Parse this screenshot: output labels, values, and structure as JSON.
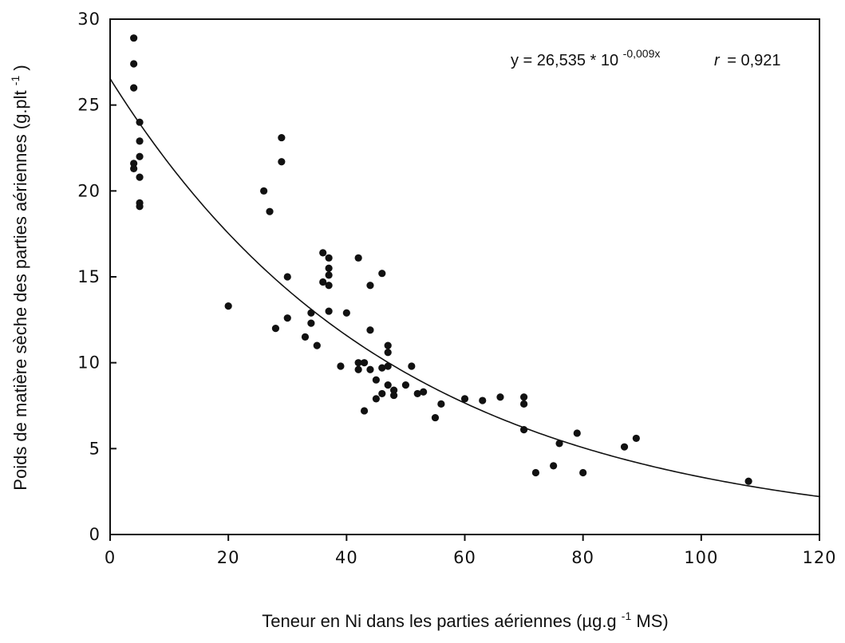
{
  "chart_data": {
    "type": "scatter",
    "xlabel_main": "Teneur en Ni dans les parties aériennes (µg.g",
    "xlabel_sup": "-1",
    "xlabel_tail": " MS)",
    "ylabel_main": "Poids de matière sèche des parties  aériennes  (g.plt",
    "ylabel_sup": "-1",
    "ylabel_tail": ")",
    "xlim": [
      0,
      120
    ],
    "ylim": [
      0,
      30
    ],
    "xticks": [
      0,
      20,
      40,
      60,
      80,
      100,
      120
    ],
    "yticks": [
      0,
      5,
      10,
      15,
      20,
      25,
      30
    ],
    "x_tick_labels": [
      "0",
      "20",
      "40",
      "60",
      "80",
      "100",
      "120"
    ],
    "y_tick_labels": [
      "0",
      "5",
      "10",
      "15",
      "20",
      "25",
      "30"
    ],
    "grid": false,
    "annotation": {
      "equation_main": "y = 26,535 * 10",
      "equation_exp": "-0,009x",
      "r_label": "r",
      "r_value": "= 0,921"
    },
    "fit": {
      "a": 26.535,
      "b": -0.009,
      "x_range": [
        0,
        120
      ]
    },
    "points": [
      [
        4,
        28.9
      ],
      [
        4,
        27.4
      ],
      [
        4,
        26.0
      ],
      [
        5,
        24.0
      ],
      [
        5,
        22.9
      ],
      [
        5,
        22.0
      ],
      [
        4,
        21.6
      ],
      [
        4,
        21.3
      ],
      [
        5,
        20.8
      ],
      [
        5,
        19.3
      ],
      [
        5,
        19.1
      ],
      [
        20,
        13.3
      ],
      [
        26,
        20.0
      ],
      [
        27,
        18.8
      ],
      [
        28,
        12.0
      ],
      [
        29,
        23.1
      ],
      [
        29,
        21.7
      ],
      [
        30,
        15.0
      ],
      [
        30,
        12.6
      ],
      [
        33,
        11.5
      ],
      [
        34,
        12.9
      ],
      [
        34,
        12.3
      ],
      [
        35,
        11.0
      ],
      [
        36,
        16.4
      ],
      [
        36,
        14.7
      ],
      [
        37,
        16.1
      ],
      [
        37,
        15.5
      ],
      [
        37,
        15.1
      ],
      [
        37,
        14.5
      ],
      [
        37,
        13.0
      ],
      [
        39,
        9.8
      ],
      [
        40,
        12.9
      ],
      [
        42,
        16.1
      ],
      [
        42,
        10.0
      ],
      [
        42,
        9.6
      ],
      [
        43,
        10.0
      ],
      [
        43,
        7.2
      ],
      [
        44,
        14.5
      ],
      [
        44,
        11.9
      ],
      [
        44,
        9.6
      ],
      [
        45,
        9.0
      ],
      [
        45,
        7.9
      ],
      [
        46,
        15.2
      ],
      [
        46,
        9.7
      ],
      [
        46,
        8.2
      ],
      [
        47,
        11.0
      ],
      [
        47,
        10.6
      ],
      [
        47,
        8.7
      ],
      [
        47,
        9.8
      ],
      [
        48,
        8.4
      ],
      [
        48,
        8.1
      ],
      [
        50,
        8.7
      ],
      [
        51,
        9.8
      ],
      [
        52,
        8.2
      ],
      [
        53,
        8.3
      ],
      [
        55,
        6.8
      ],
      [
        56,
        7.6
      ],
      [
        60,
        7.9
      ],
      [
        63,
        7.8
      ],
      [
        66,
        8.0
      ],
      [
        70,
        8.0
      ],
      [
        70,
        7.6
      ],
      [
        70,
        6.1
      ],
      [
        72,
        3.6
      ],
      [
        75,
        4.0
      ],
      [
        76,
        5.3
      ],
      [
        79,
        5.9
      ],
      [
        80,
        3.6
      ],
      [
        87,
        5.1
      ],
      [
        89,
        5.6
      ],
      [
        108,
        3.1
      ]
    ]
  }
}
